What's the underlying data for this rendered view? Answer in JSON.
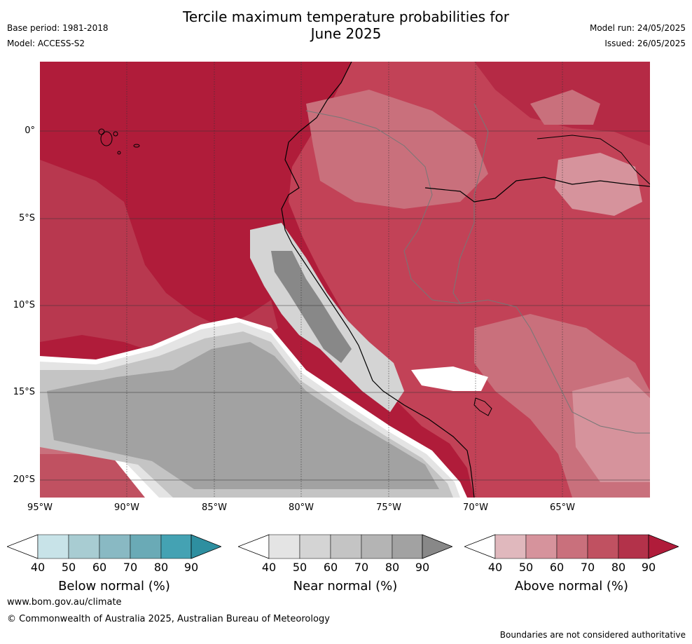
{
  "header": {
    "title_line1": "Tercile maximum temperature probabilities for",
    "title_line2": "June 2025",
    "base_period": "Base period: 1981-2018",
    "model": "Model: ACCESS-S2",
    "model_run": "Model run: 24/05/2025",
    "issued": "Issued: 26/05/2025"
  },
  "map": {
    "y_ticks": [
      "0°",
      "5°S",
      "10°S",
      "15°S",
      "20°S"
    ],
    "x_ticks": [
      "95°W",
      "90°W",
      "85°W",
      "80°W",
      "75°W",
      "70°W",
      "65°W"
    ]
  },
  "colorbars": [
    {
      "label": "Below normal (%)",
      "ticks": [
        "40",
        "50",
        "60",
        "70",
        "80",
        "90"
      ],
      "colors": [
        "#ffffff",
        "#c8e3e8",
        "#a8ccd2",
        "#89b9c3",
        "#6aaab6",
        "#44a2b3",
        "#2e8fa0"
      ]
    },
    {
      "label": "Near normal (%)",
      "ticks": [
        "40",
        "50",
        "60",
        "70",
        "80",
        "90"
      ],
      "colors": [
        "#ffffff",
        "#e4e4e4",
        "#d4d4d4",
        "#c4c4c4",
        "#b4b4b4",
        "#a2a2a2",
        "#888888"
      ]
    },
    {
      "label": "Above normal (%)",
      "ticks": [
        "40",
        "50",
        "60",
        "70",
        "80",
        "90"
      ],
      "colors": [
        "#ffffff",
        "#e0b8bd",
        "#d6939c",
        "#c9707c",
        "#c05161",
        "#b3324a",
        "#b01c3a"
      ]
    }
  ],
  "footer": {
    "url": "www.bom.gov.au/climate",
    "copyright": "© Commonwealth of Australia 2025, Australian Bureau of Meteorology",
    "disclaimer": "Boundaries are not considered authoritative"
  }
}
